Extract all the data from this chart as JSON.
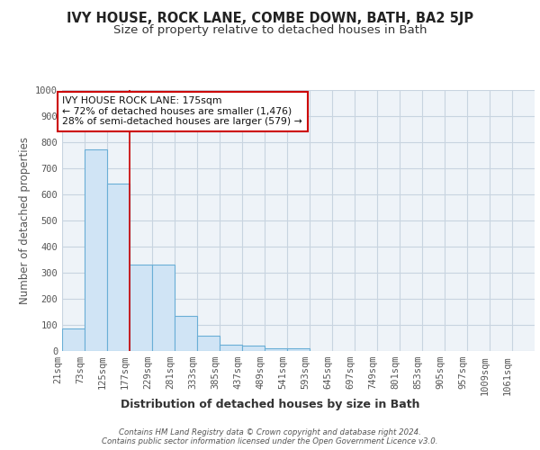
{
  "title": "IVY HOUSE, ROCK LANE, COMBE DOWN, BATH, BA2 5JP",
  "subtitle": "Size of property relative to detached houses in Bath",
  "xlabel": "Distribution of detached houses by size in Bath",
  "ylabel": "Number of detached properties",
  "bar_values": [
    85,
    773,
    643,
    330,
    330,
    135,
    60,
    25,
    20,
    10,
    10,
    0,
    0,
    0,
    0,
    0,
    0,
    0,
    0,
    0,
    0
  ],
  "bin_edges": [
    21,
    73,
    125,
    177,
    229,
    281,
    333,
    385,
    437,
    489,
    541,
    593,
    645,
    697,
    749,
    801,
    853,
    905,
    957,
    1009,
    1061,
    1113
  ],
  "x_tick_labels": [
    "21sqm",
    "73sqm",
    "125sqm",
    "177sqm",
    "229sqm",
    "281sqm",
    "333sqm",
    "385sqm",
    "437sqm",
    "489sqm",
    "541sqm",
    "593sqm",
    "645sqm",
    "697sqm",
    "749sqm",
    "801sqm",
    "853sqm",
    "905sqm",
    "957sqm",
    "1009sqm",
    "1061sqm"
  ],
  "bar_color": "#d0e4f5",
  "bar_edge_color": "#6aaed6",
  "grid_color": "#c8d4e0",
  "bg_color": "#eef3f8",
  "red_line_x": 177,
  "red_line_color": "#cc0000",
  "ylim": [
    0,
    1000
  ],
  "yticks": [
    0,
    100,
    200,
    300,
    400,
    500,
    600,
    700,
    800,
    900,
    1000
  ],
  "annotation_text": "IVY HOUSE ROCK LANE: 175sqm\n← 72% of detached houses are smaller (1,476)\n28% of semi-detached houses are larger (579) →",
  "annotation_box_color": "#ffffff",
  "annotation_box_edge": "#cc0000",
  "footer_text": "Contains HM Land Registry data © Crown copyright and database right 2024.\nContains public sector information licensed under the Open Government Licence v3.0.",
  "title_fontsize": 10.5,
  "subtitle_fontsize": 9.5,
  "ylabel_fontsize": 8.5,
  "xlabel_fontsize": 9,
  "tick_fontsize": 7.5,
  "ann_fontsize": 7.8
}
